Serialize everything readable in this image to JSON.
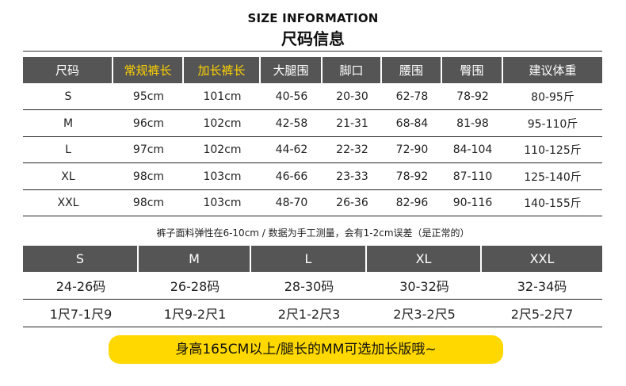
{
  "header": {
    "title_en": "SIZE INFORMATION",
    "title_cn": "尺码信息"
  },
  "colors": {
    "header_bg": "#555555",
    "header_text": "#ffffff",
    "highlight_text": "#ffd200",
    "banner_bg": "#ffd800"
  },
  "table1": {
    "headers": [
      "尺码",
      "常规裤长",
      "加长裤长",
      "大腿围",
      "脚口",
      "腰围",
      "臀围",
      "建议体重"
    ],
    "highlighted_headers": [
      "常规裤长",
      "加长裤长"
    ],
    "rows": [
      [
        "S",
        "95cm",
        "101cm",
        "40-56",
        "20-30",
        "62-78",
        "78-92",
        "80-95斤"
      ],
      [
        "M",
        "96cm",
        "102cm",
        "42-58",
        "21-31",
        "68-84",
        "81-98",
        "95-110斤"
      ],
      [
        "L",
        "97cm",
        "102cm",
        "44-62",
        "22-32",
        "72-90",
        "84-104",
        "110-125斤"
      ],
      [
        "XL",
        "98cm",
        "103cm",
        "46-66",
        "23-33",
        "78-92",
        "87-110",
        "125-140斤"
      ],
      [
        "XXL",
        "98cm",
        "103cm",
        "48-70",
        "26-36",
        "82-96",
        "90-116",
        "140-155斤"
      ]
    ]
  },
  "note": "裤子面料弹性在6-10cm / 数据为手工测量，会有1-2cm误差（是正常的）",
  "table2": {
    "headers": [
      "S",
      "M",
      "L",
      "XL",
      "XXL"
    ],
    "rows": [
      [
        "24-26码",
        "26-28码",
        "28-30码",
        "30-32码",
        "32-34码"
      ],
      [
        "1尺7-1尺9",
        "1尺9-2尺1",
        "2尺1-2尺3",
        "2尺3-2尺5",
        "2尺5-2尺7"
      ]
    ]
  },
  "banner": "身高165CM以上/腿长的MM可选加长版哦~"
}
